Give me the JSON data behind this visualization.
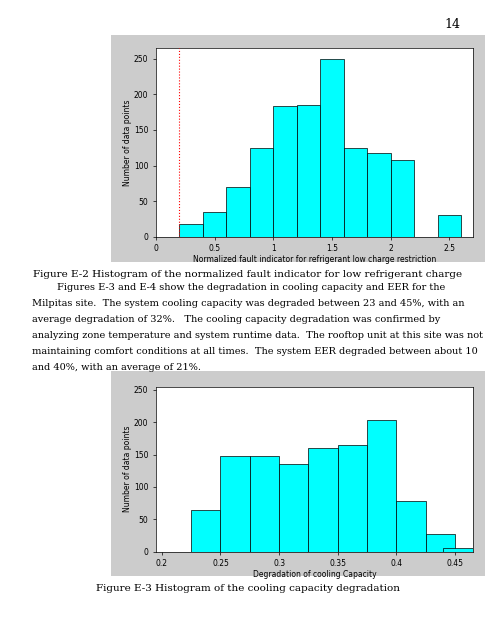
{
  "page_number": "14",
  "fig1": {
    "xlabel": "Normalized fault indicator for refrigerant low charge restriction",
    "ylabel": "Number of data points",
    "bar_left_edges": [
      0.2,
      0.4,
      0.6,
      0.8,
      1.0,
      1.2,
      1.4,
      1.6,
      1.8,
      2.0,
      2.2,
      2.4
    ],
    "bar_heights": [
      18,
      35,
      70,
      125,
      183,
      185,
      250,
      125,
      118,
      108,
      0,
      30
    ],
    "bar_width": 0.2,
    "xlim": [
      0,
      2.7
    ],
    "ylim": [
      0,
      265
    ],
    "yticks": [
      0,
      50,
      100,
      150,
      200,
      250
    ],
    "xticks": [
      0,
      0.5,
      1.0,
      1.5,
      2.0,
      2.5
    ],
    "xticklabels": [
      "0",
      "0.5",
      "1",
      "1.5",
      "2",
      "2.5"
    ],
    "red_vline": 0.2,
    "bar_color": "#00FFFF",
    "bar_edge_color": "#000000",
    "caption": "Figure E-2 Histogram of the normalized fault indicator for low refrigerant charge"
  },
  "para_lines": [
    "        Figures E-3 and E-4 show the degradation in cooling capacity and EER for the",
    "Milpitas site.  The system cooling capacity was degraded between 23 and 45%, with an",
    "average degradation of 32%.   The cooling capacity degradation was confirmed by",
    "analyzing zone temperature and system runtime data.  The rooftop unit at this site was not",
    "maintaining comfort conditions at all times.  The system EER degraded between about 10",
    "and 40%, with an average of 21%."
  ],
  "fig2": {
    "xlabel": "Degradation of cooling Capacity",
    "ylabel": "Number of data points",
    "bar_left_edges": [
      0.2,
      0.225,
      0.25,
      0.275,
      0.3,
      0.325,
      0.35,
      0.375,
      0.4,
      0.425,
      0.44
    ],
    "bar_heights": [
      0,
      65,
      148,
      148,
      135,
      160,
      165,
      203,
      78,
      27,
      5
    ],
    "bar_width": 0.025,
    "xlim": [
      0.195,
      0.465
    ],
    "ylim": [
      0,
      255
    ],
    "yticks": [
      0,
      50,
      100,
      150,
      200,
      250
    ],
    "xticks": [
      0.2,
      0.25,
      0.3,
      0.35,
      0.4,
      0.45
    ],
    "xticklabels": [
      "0.2",
      "0.25",
      "0.3",
      "0.35",
      "0.4",
      "0.45"
    ],
    "bar_color": "#00FFFF",
    "bar_edge_color": "#000000",
    "caption": "Figure E-3 Histogram of the cooling capacity degradation"
  },
  "bg_color": "#cccccc",
  "plot_bg_color": "#ffffff",
  "page_bg": "#ffffff",
  "font_size_caption": 7.5,
  "font_size_axis_label": 5.5,
  "font_size_tick": 5.5,
  "font_size_para": 7.0,
  "font_size_pagenum": 9
}
